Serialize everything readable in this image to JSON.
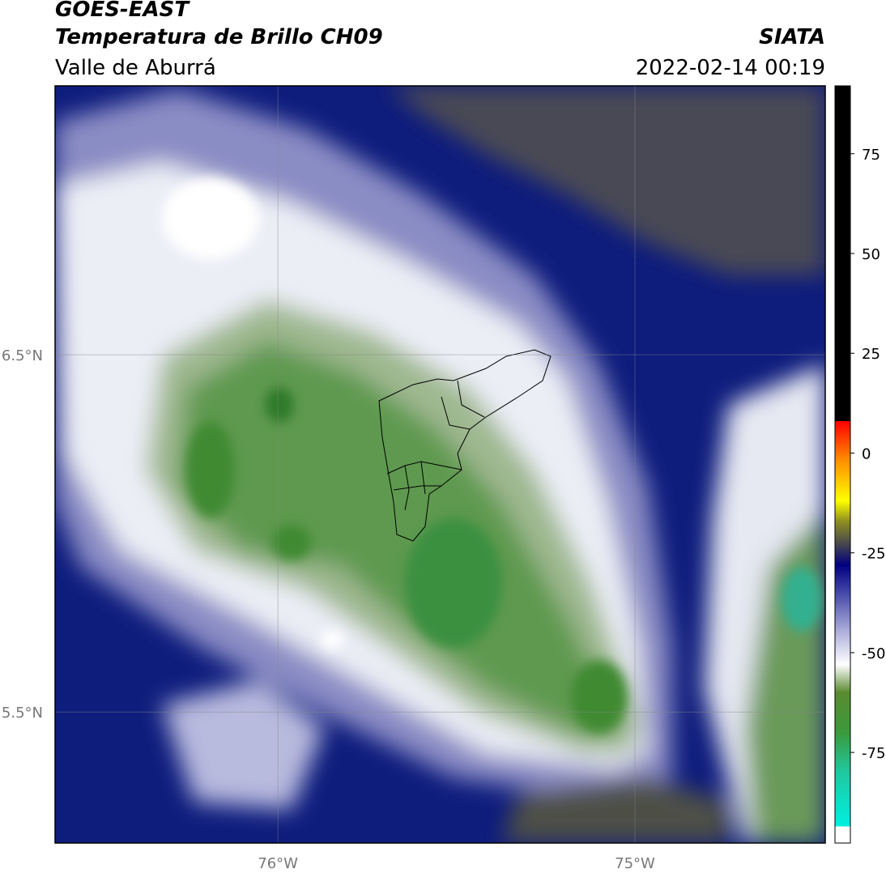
{
  "header": {
    "title": "GOES-EAST",
    "subtitle": "Temperatura de Brillo CH09",
    "region": "Valle de Aburrá",
    "source": "SIATA",
    "datetime": "2022-02-14 00:19"
  },
  "map": {
    "xlim": [
      -76.624,
      -74.467
    ],
    "ylim": [
      5.133,
      7.253
    ],
    "xticks": [
      {
        "value": -76,
        "label": "76°W"
      },
      {
        "value": -75,
        "label": "75°W"
      }
    ],
    "yticks": [
      {
        "value": 6.5,
        "label": "6.5°N"
      },
      {
        "value": 5.5,
        "label": "5.5°N"
      }
    ],
    "grid": true
  },
  "colorbar": {
    "ylim": [
      -97.7,
      92
    ],
    "yticks": [
      75,
      50,
      25,
      0,
      -25,
      -50,
      -75
    ],
    "stops": [
      {
        "value": -97.7,
        "color": "#ffffff"
      },
      {
        "value": -93.5,
        "color": "#ffffff"
      },
      {
        "value": -93.5,
        "color": "#00f0e0"
      },
      {
        "value": -80,
        "color": "#20c8a0"
      },
      {
        "value": -70,
        "color": "#3a9a3c"
      },
      {
        "value": -60,
        "color": "#5a8a30"
      },
      {
        "value": -53,
        "color": "#ffffff"
      },
      {
        "value": -45,
        "color": "#b0b2dc"
      },
      {
        "value": -35,
        "color": "#4448a8"
      },
      {
        "value": -28,
        "color": "#000080"
      },
      {
        "value": -23,
        "color": "#444450"
      },
      {
        "value": -17,
        "color": "#909020"
      },
      {
        "value": -12,
        "color": "#ffff00"
      },
      {
        "value": -2,
        "color": "#ff9000"
      },
      {
        "value": 8,
        "color": "#ff0000"
      },
      {
        "value": 8,
        "color": "#000000"
      },
      {
        "value": 92,
        "color": "#000000"
      }
    ]
  }
}
